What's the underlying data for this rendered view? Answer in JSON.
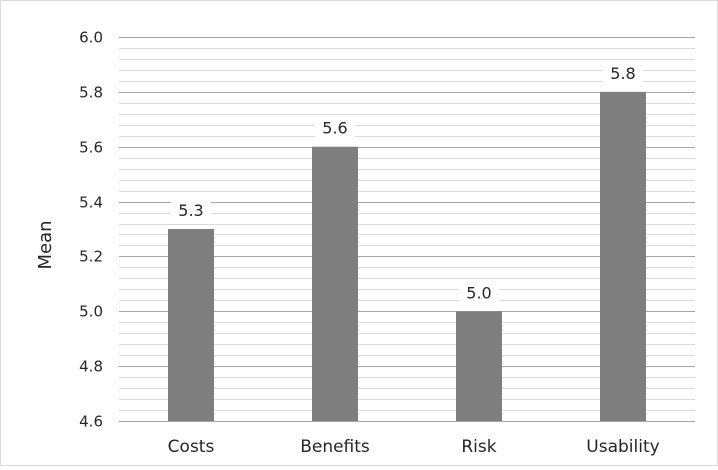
{
  "chart_data": {
    "type": "bar",
    "categories": [
      "Costs",
      "Benefits",
      "Risk",
      "Usability"
    ],
    "values": [
      5.3,
      5.6,
      5.0,
      5.8
    ],
    "data_labels": [
      "5.3",
      "5.6",
      "5.0",
      "5.8"
    ],
    "title": "",
    "xlabel": "",
    "ylabel": "Mean",
    "ylim": [
      4.6,
      6.0
    ],
    "y_ticks": [
      "4.6",
      "4.8",
      "5.0",
      "5.2",
      "5.4",
      "5.6",
      "5.8",
      "6.0"
    ],
    "grid": true,
    "minor_grid_step": 0.04,
    "legend": "none",
    "colors": {
      "bar": "#7f7f7f",
      "major_grid": "#a6a6a6",
      "minor_grid": "#d9d9d9",
      "text": "#262626"
    }
  }
}
